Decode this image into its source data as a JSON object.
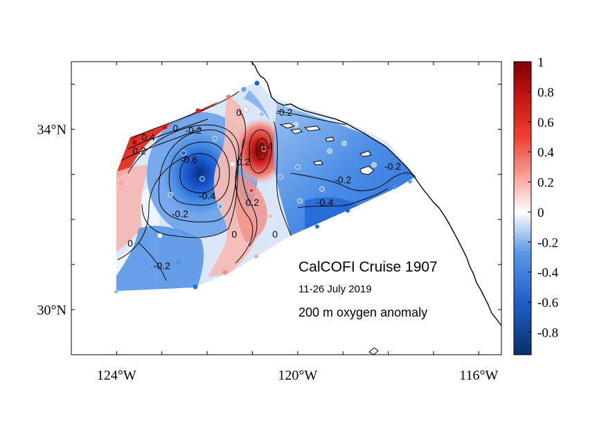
{
  "map": {
    "annotations": {
      "title": "CalCOFI Cruise 1907",
      "dates": "11-26 July 2019",
      "variable": "200 m oxygen anomaly"
    },
    "x_ticks": [
      {
        "value": -124,
        "label": "124°W"
      },
      {
        "value": -120,
        "label": "120°W"
      },
      {
        "value": -116,
        "label": "116°W"
      }
    ],
    "y_ticks": [
      {
        "value": 30,
        "label": "30°N"
      },
      {
        "value": 34,
        "label": "34°N"
      }
    ],
    "extent": {
      "lon": [
        -125,
        -115.5
      ],
      "lat": [
        29,
        35.5
      ]
    },
    "contour_labels": [
      {
        "text": "-0.2",
        "lon": -122.3,
        "lat": 33.9
      },
      {
        "text": "-0.6",
        "lon": -122.4,
        "lat": 33.25
      },
      {
        "text": "-0.4",
        "lon": -122.0,
        "lat": 32.45
      },
      {
        "text": "-0.2",
        "lon": -122.6,
        "lat": 32.05
      },
      {
        "text": "0",
        "lon": -123.7,
        "lat": 31.4
      },
      {
        "text": "-0.2",
        "lon": -123.0,
        "lat": 30.9
      },
      {
        "text": "0",
        "lon": -122.7,
        "lat": 33.95
      },
      {
        "text": "0",
        "lon": -121.3,
        "lat": 34.3
      },
      {
        "text": "0.2",
        "lon": -121.2,
        "lat": 33.2
      },
      {
        "text": "0.4",
        "lon": -120.7,
        "lat": 33.55
      },
      {
        "text": "0.2",
        "lon": -121.0,
        "lat": 32.3
      },
      {
        "text": "0",
        "lon": -121.4,
        "lat": 31.6
      },
      {
        "text": "0",
        "lon": -120.5,
        "lat": 31.6
      },
      {
        "text": "-0.2",
        "lon": -120.3,
        "lat": 34.3
      },
      {
        "text": "-0.2",
        "lon": -119.0,
        "lat": 32.8
      },
      {
        "text": "-0.4",
        "lon": -119.4,
        "lat": 32.3
      },
      {
        "text": "-0.2",
        "lon": -117.9,
        "lat": 33.1
      },
      {
        "text": "0.2",
        "lon": -123.5,
        "lat": 33.45
      },
      {
        "text": "0.4",
        "lon": -123.3,
        "lat": 33.75
      }
    ]
  },
  "colorbar": {
    "min": -0.95,
    "max": 1.0,
    "ticks": [
      {
        "value": 1,
        "label": "1"
      },
      {
        "value": 0.8,
        "label": "0.8"
      },
      {
        "value": 0.6,
        "label": "0.6"
      },
      {
        "value": 0.4,
        "label": "0.4"
      },
      {
        "value": 0.2,
        "label": "0.2"
      },
      {
        "value": 0,
        "label": "0"
      },
      {
        "value": -0.2,
        "label": "-0.2"
      },
      {
        "value": -0.4,
        "label": "-0.4"
      },
      {
        "value": -0.6,
        "label": "-0.6"
      },
      {
        "value": -0.8,
        "label": "-0.8"
      }
    ],
    "colors": {
      "low": "#08306b",
      "mid_low": "#2171d8",
      "zero": "#ffffff",
      "mid_high": "#e8201e",
      "high": "#7f0000"
    }
  }
}
